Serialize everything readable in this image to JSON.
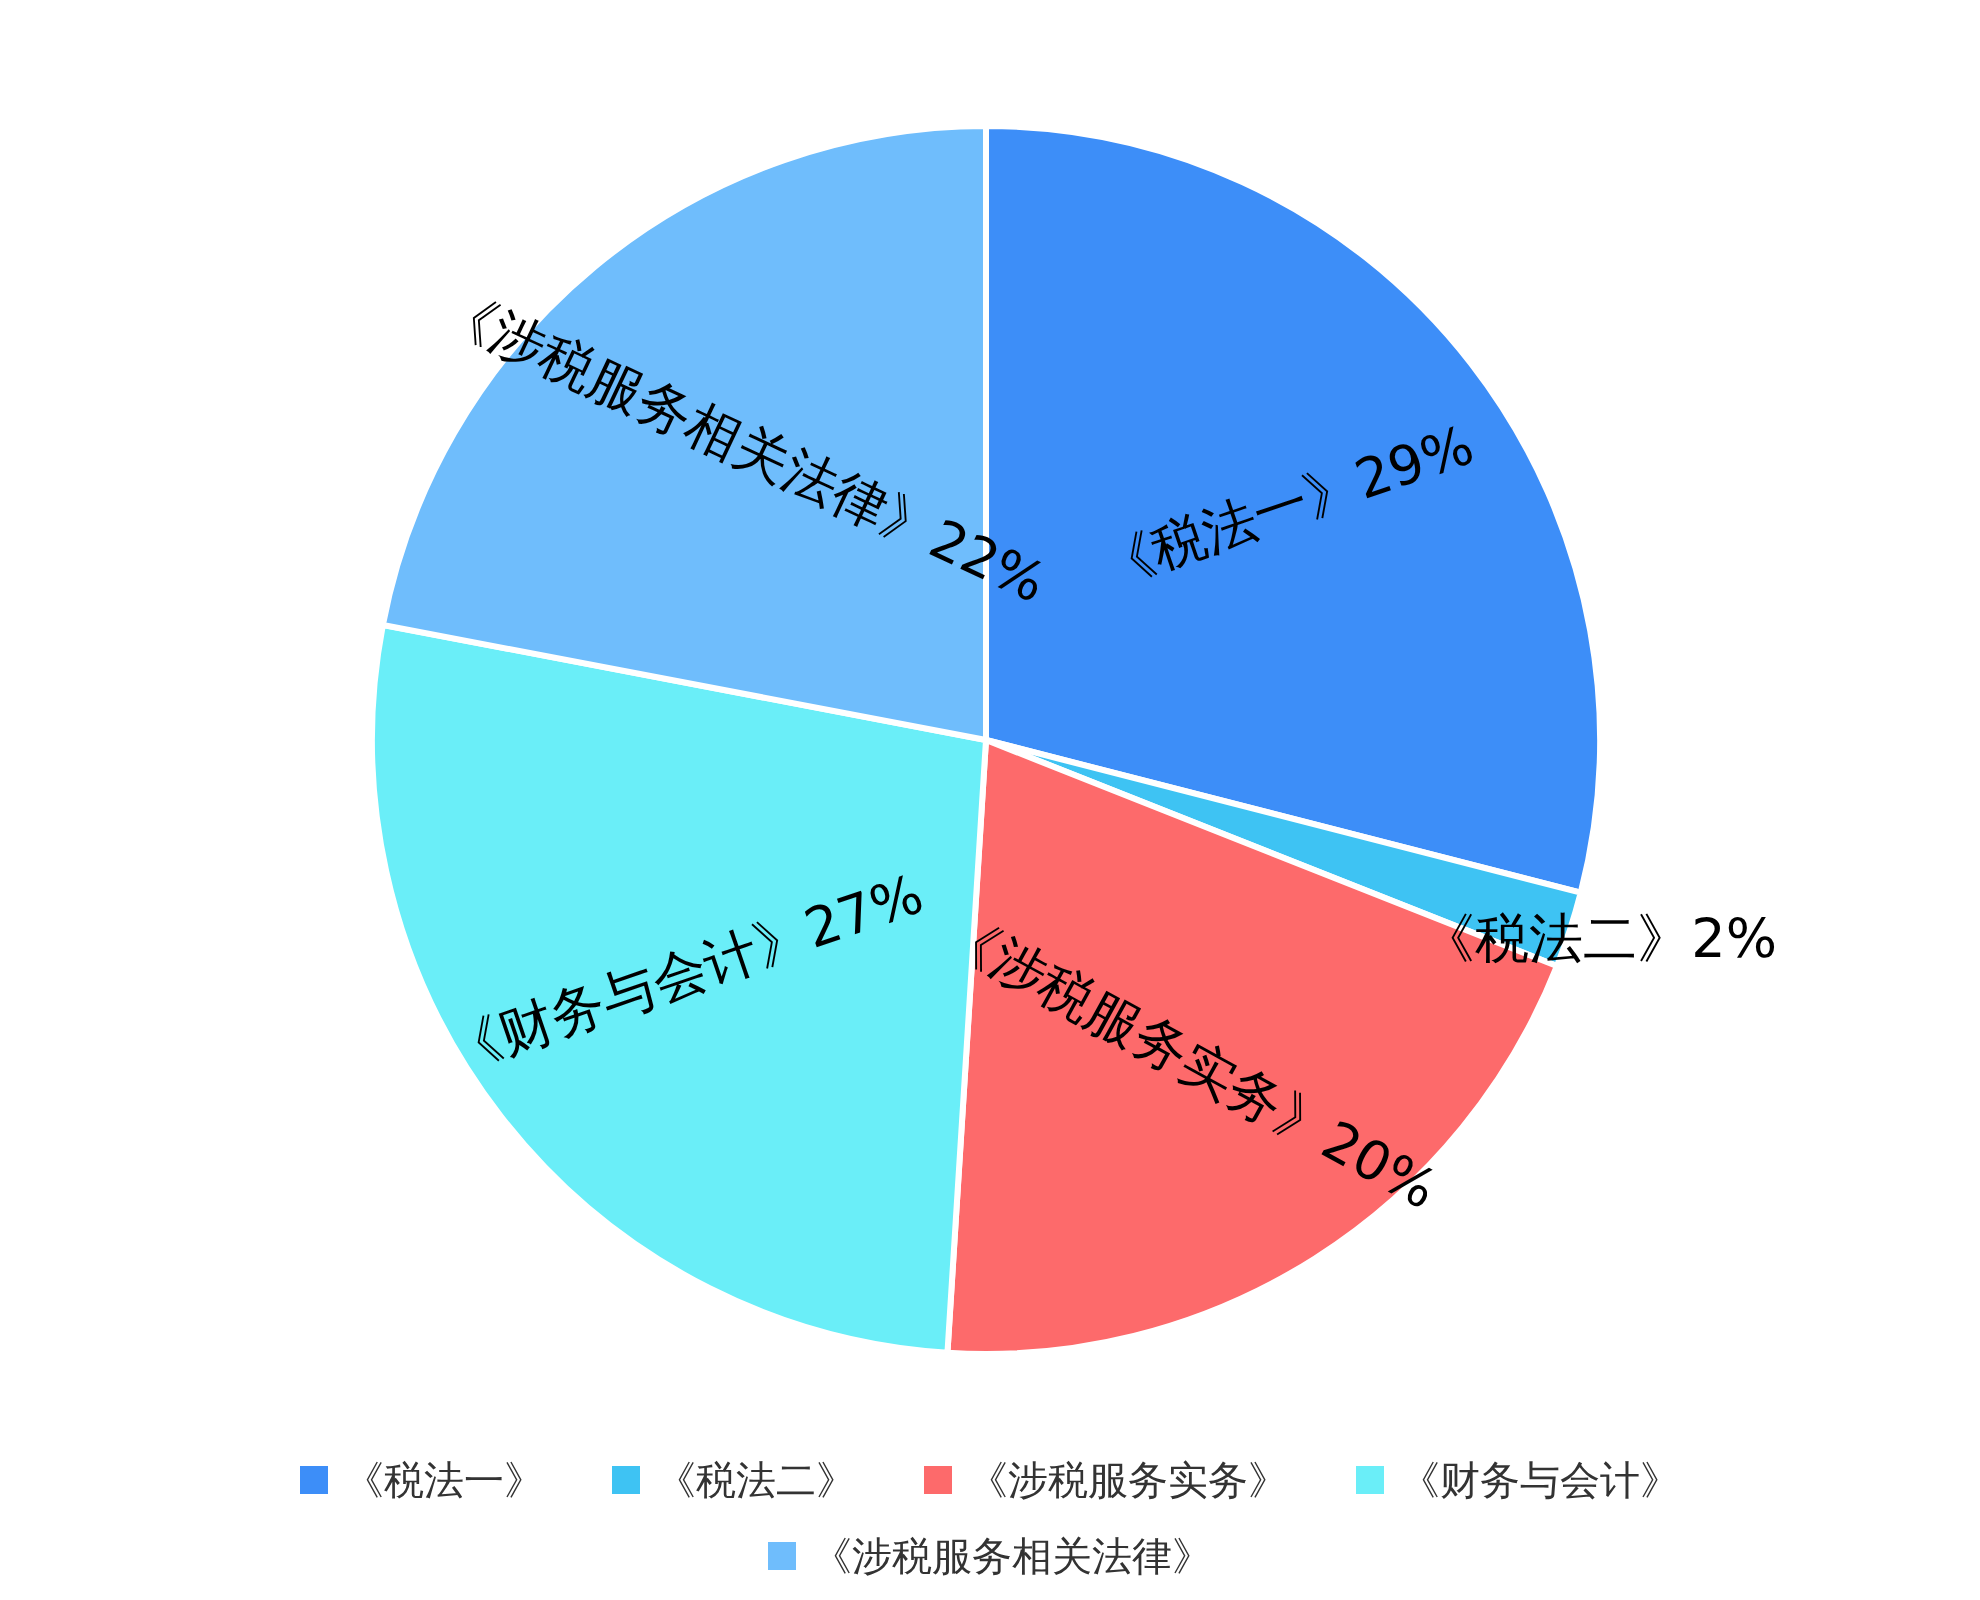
{
  "chart_data": {
    "type": "pie",
    "categories": [
      "《税法一》",
      "《税法二》",
      "《涉税服务实务》",
      "《财务与会计》",
      "《涉税服务相关法律》"
    ],
    "values": [
      29,
      2,
      20,
      27,
      22
    ],
    "value_labels": [
      "29%",
      "2%",
      "20%",
      "27%",
      "22%"
    ],
    "colors": [
      "#3d8ef8",
      "#3ec3f3",
      "#fd6a6b",
      "#6aeef8",
      "#6fbdfc"
    ],
    "legend": "bottom"
  }
}
